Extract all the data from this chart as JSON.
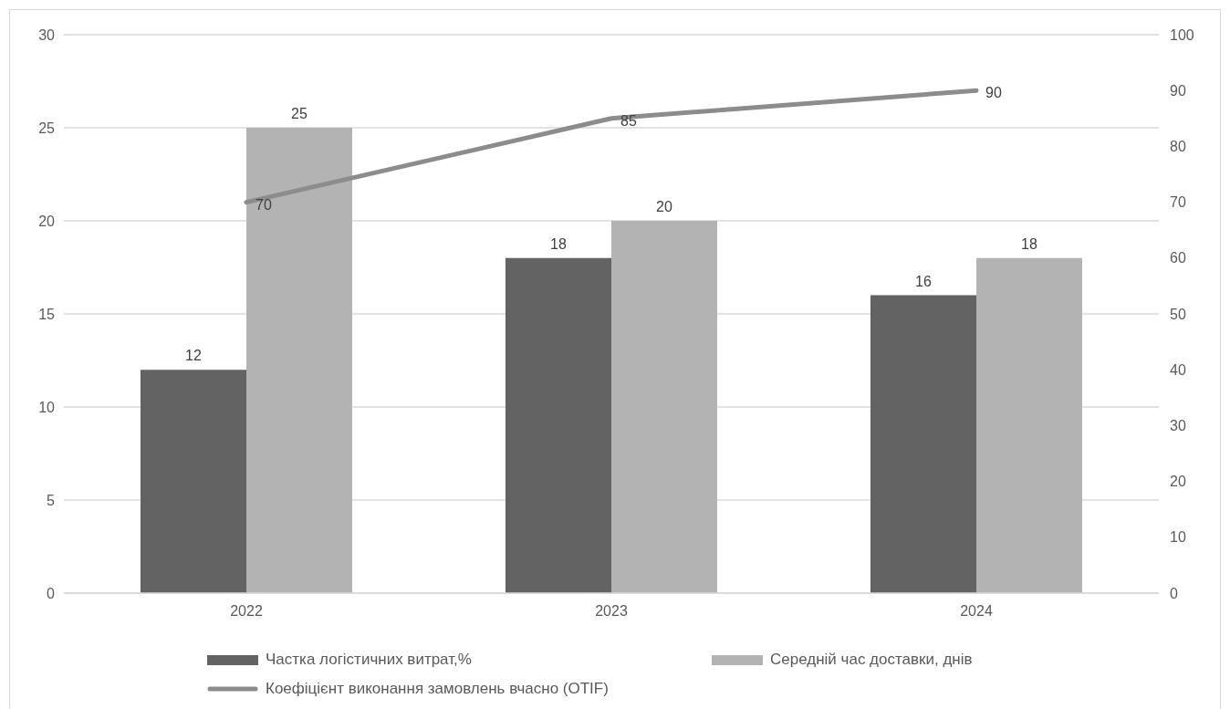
{
  "chart_data": {
    "type": "bar",
    "categories": [
      "2022",
      "2023",
      "2024"
    ],
    "series": [
      {
        "name": "Частка логістичних витрат,%",
        "color": "#636363",
        "values": [
          12,
          18,
          16
        ]
      },
      {
        "name": "Середній час доставки, днів",
        "color": "#b3b3b3",
        "values": [
          25,
          20,
          18
        ]
      },
      {
        "name": "Коефіцієнт виконання замовлень вчасно (OTIF)",
        "type": "line",
        "axis": "y2",
        "color": "#8c8c8c",
        "values": [
          70,
          85,
          90
        ]
      }
    ],
    "ylim": [
      0,
      30
    ],
    "yticks": [
      0,
      5,
      10,
      15,
      20,
      25,
      30
    ],
    "y2lim": [
      0,
      100
    ],
    "y2ticks": [
      0,
      10,
      20,
      30,
      40,
      50,
      60,
      70,
      80,
      90,
      100
    ],
    "grid": "y",
    "legend": "bottom",
    "data_labels": true
  }
}
